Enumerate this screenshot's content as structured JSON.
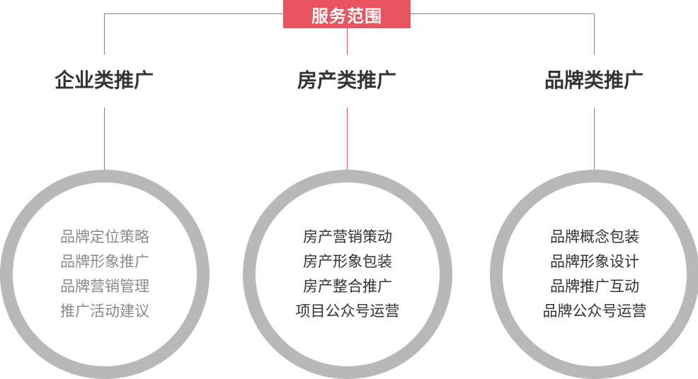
{
  "title": "服务范围",
  "categories": [
    {
      "heading": "企业类推广",
      "items": [
        "品牌定位策略",
        "品牌形象推广",
        "品牌营销管理",
        "推广活动建议"
      ]
    },
    {
      "heading": "房产类推广",
      "items": [
        "房产营销策动",
        "房产形象包装",
        "房产整合推广",
        "项目公众号运营"
      ]
    },
    {
      "heading": "品牌类推广",
      "items": [
        "品牌概念包装",
        "品牌形象设计",
        "品牌推广互动",
        "品牌公众号运营"
      ]
    }
  ],
  "colors": {
    "accent": "#e9535f",
    "line": "#e05a67",
    "ring": "#b8b8b8",
    "heading_text": "#333333",
    "muted_text": "#8a8a8a"
  }
}
